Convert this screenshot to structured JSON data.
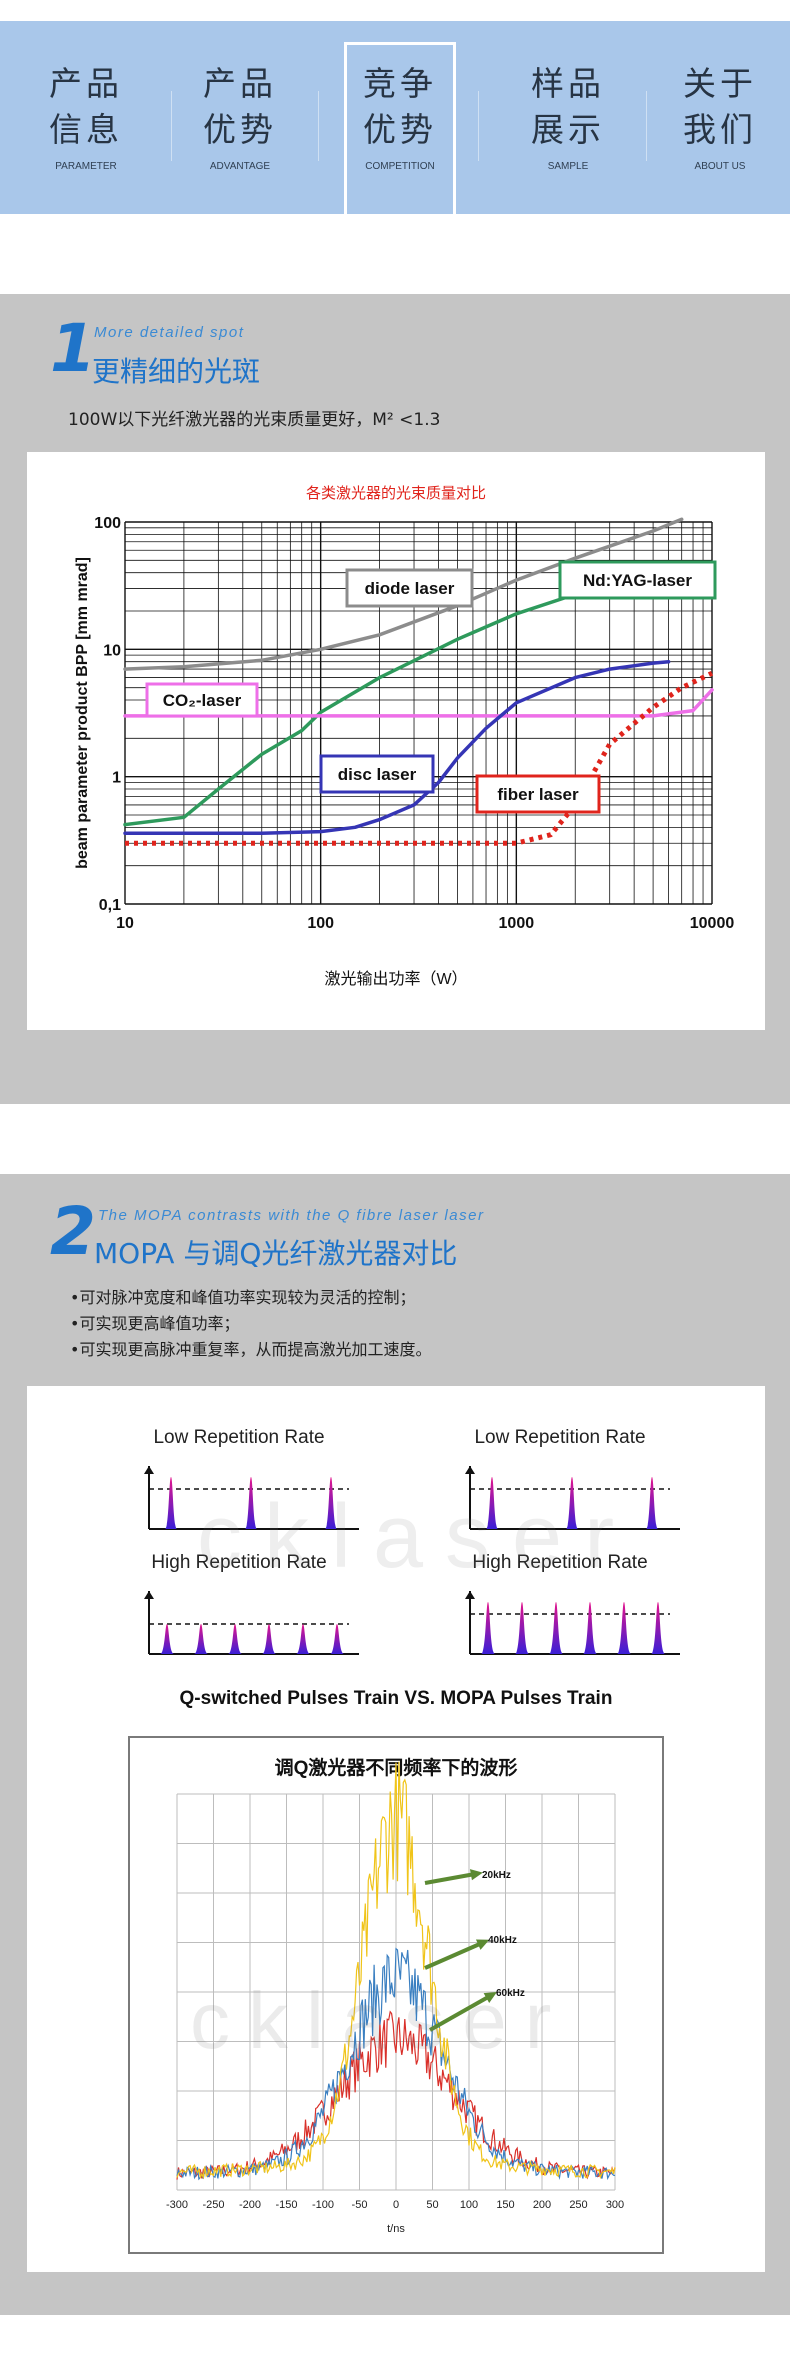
{
  "nav": {
    "items": [
      {
        "zh1": "产品",
        "zh2": "信息",
        "en": "PARAMETER",
        "active": false
      },
      {
        "zh1": "产品",
        "zh2": "优势",
        "en": "ADVANTAGE",
        "active": false
      },
      {
        "zh1": "竞争",
        "zh2": "优势",
        "en": "COMPETITION",
        "active": true
      },
      {
        "zh1": "样品",
        "zh2": "展示",
        "en": "SAMPLE",
        "active": false
      },
      {
        "zh1": "关于",
        "zh2": "我们",
        "en": "ABOUT US",
        "active": false
      }
    ]
  },
  "section1": {
    "number": "1",
    "subtitle_en": "More detailed spot",
    "title": "更精细的光斑",
    "description": "100W以下光纤激光器的光束质量更好，M² <1.3"
  },
  "section2": {
    "number": "2",
    "subtitle_en": "The MOPA contrasts with the Q fibre laser laser",
    "title": "MOPA 与调Q光纤激光器对比",
    "bullets": [
      "•可对脉冲宽度和峰值功率实现较为灵活的控制；",
      "•可实现更高峰值功率；",
      "•可实现更高脉冲重复率，从而提高激光加工速度。"
    ]
  },
  "watermark": "cklaser",
  "chart_data": [
    {
      "type": "line",
      "title": "各类激光器的光束质量对比",
      "xlabel": "激光输出功率（W）",
      "ylabel": "beam parameter product BPP [mm mrad]",
      "x_scale": "log",
      "y_scale": "log",
      "xlim": [
        10,
        10000
      ],
      "ylim": [
        0.1,
        100
      ],
      "x_ticks": [
        "10",
        "100",
        "1000",
        "10000"
      ],
      "y_ticks": [
        "0,1",
        "1",
        "10",
        "100"
      ],
      "grid": true,
      "series": [
        {
          "name": "diode laser",
          "color": "#8c8c8c",
          "style": "solid",
          "x": [
            10,
            20,
            50,
            100,
            200,
            500,
            1000,
            2000,
            5000,
            7000
          ],
          "y": [
            7,
            7.3,
            8.2,
            10,
            13,
            22,
            35,
            52,
            85,
            105
          ]
        },
        {
          "name": "Nd:YAG-laser",
          "color": "#2e9a5c",
          "style": "solid",
          "x": [
            10,
            20,
            30,
            50,
            80,
            100,
            200,
            500,
            1000,
            2000,
            3000,
            5000
          ],
          "y": [
            0.42,
            0.48,
            0.8,
            1.5,
            2.3,
            3.2,
            6,
            12,
            19,
            27,
            29,
            32
          ]
        },
        {
          "name": "CO₂-laser",
          "color": "#ee6fe8",
          "style": "solid",
          "x": [
            10,
            100,
            1000,
            5000,
            8000,
            10000
          ],
          "y": [
            3,
            3,
            3,
            3,
            3.3,
            4.8
          ]
        },
        {
          "name": "disc laser",
          "color": "#3535b5",
          "style": "solid",
          "x": [
            10,
            50,
            100,
            150,
            200,
            300,
            400,
            500,
            700,
            1000,
            2000,
            3000,
            5000,
            6000
          ],
          "y": [
            0.36,
            0.36,
            0.37,
            0.4,
            0.46,
            0.6,
            0.9,
            1.4,
            2.4,
            3.8,
            6,
            7,
            7.8,
            8
          ]
        },
        {
          "name": "fiber laser",
          "color": "#e0241c",
          "style": "dotted",
          "x": [
            10,
            100,
            500,
            1000,
            1500,
            2000,
            3000,
            5000,
            7000,
            10000
          ],
          "y": [
            0.3,
            0.3,
            0.3,
            0.3,
            0.35,
            0.6,
            1.8,
            3.5,
            5,
            6.5
          ]
        }
      ]
    },
    {
      "type": "diagram",
      "caption": "Q-switched Pulses Train   VS.   MOPA Pulses Train",
      "panels": [
        {
          "label": "Low Repetition Rate",
          "pulses": 3,
          "peak": "high"
        },
        {
          "label": "High Repetition Rate",
          "pulses": 6,
          "peak": "low"
        },
        {
          "label": "Low Repetition Rate",
          "pulses": 3,
          "peak": "high"
        },
        {
          "label": "High Repetition Rate",
          "pulses": 6,
          "peak": "high"
        }
      ]
    },
    {
      "type": "line",
      "title": "调Q激光器不同频率下的波形",
      "xlabel": "t/ns",
      "ylabel": "",
      "xlim": [
        -300,
        300
      ],
      "x_ticks": [
        "-300",
        "-250",
        "-200",
        "-150",
        "-100",
        "-50",
        "0",
        "50",
        "100",
        "150",
        "200",
        "250",
        "300"
      ],
      "grid": true,
      "series": [
        {
          "name": "20kHz",
          "color": "#f0c419",
          "peak": 1.0,
          "width_ns": 45
        },
        {
          "name": "40kHz",
          "color": "#3a7fc1",
          "peak": 0.55,
          "width_ns": 65
        },
        {
          "name": "60kHz",
          "color": "#d9302a",
          "peak": 0.38,
          "width_ns": 80
        }
      ],
      "annotations": [
        "20kHz",
        "40kHz",
        "60kHz"
      ]
    }
  ]
}
